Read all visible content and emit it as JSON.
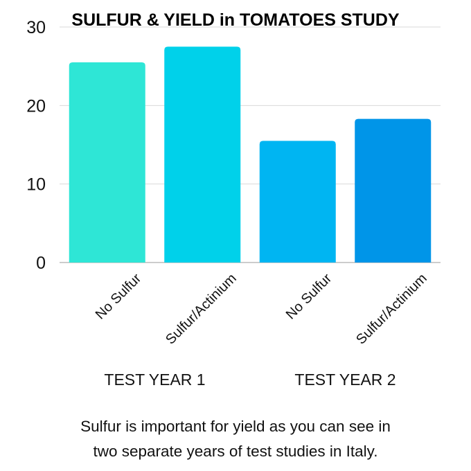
{
  "chart_data": {
    "type": "bar",
    "title": "SULFUR & YIELD in TOMATOES STUDY",
    "categories": [
      "No Sulfur",
      "Sulfur/Actinium",
      "No Sulfur",
      "Sulfur/Actinium"
    ],
    "values": [
      25.5,
      27.5,
      15.5,
      18.3
    ],
    "groups": [
      {
        "label": "TEST YEAR 1",
        "categories": [
          0,
          1
        ]
      },
      {
        "label": "TEST YEAR 2",
        "categories": [
          2,
          3
        ]
      }
    ],
    "bar_colors": [
      "#2ee6d6",
      "#00d1ea",
      "#00b5f2",
      "#0095e8"
    ],
    "yticks": [
      0,
      10,
      20,
      30
    ],
    "ylim": [
      0,
      30
    ],
    "grid": true,
    "xlabel": "",
    "ylabel": ""
  },
  "caption": {
    "line1": "Sulfur is important for yield as you can see in",
    "line2": "two separate years of test studies in Italy."
  }
}
